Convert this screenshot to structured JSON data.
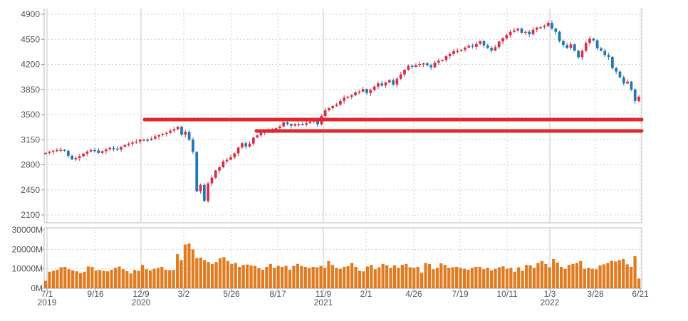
{
  "chart_data": [
    {
      "type": "candlestick",
      "y_ticks": [
        "4900",
        "4550",
        "4200",
        "3850",
        "3500",
        "3150",
        "2800",
        "2450",
        "2100"
      ],
      "ylim": [
        2000,
        4920
      ],
      "x_ticks": [
        {
          "label": "7/1",
          "year": "2019"
        },
        {
          "label": "9/16",
          "year": ""
        },
        {
          "label": "12/9",
          "year": "2020"
        },
        {
          "label": "3/2",
          "year": ""
        },
        {
          "label": "5/26",
          "year": ""
        },
        {
          "label": "8/17",
          "year": ""
        },
        {
          "label": "11/9",
          "year": "2021"
        },
        {
          "label": "2/1",
          "year": ""
        },
        {
          "label": "4/26",
          "year": ""
        },
        {
          "label": "7/19",
          "year": ""
        },
        {
          "label": "10/11",
          "year": ""
        },
        {
          "label": "1/3",
          "year": "2022"
        },
        {
          "label": "3/28",
          "year": ""
        },
        {
          "label": "6/21",
          "year": ""
        }
      ],
      "grid": true,
      "colors": {
        "up": "#d8304a",
        "down": "#1f77b4",
        "volume": "#e07b20",
        "lines": "#e0282e"
      },
      "closes": [
        2965,
        2980,
        2995,
        3005,
        3010,
        2995,
        2925,
        2875,
        2895,
        2920,
        2955,
        2985,
        3005,
        3000,
        2965,
        2990,
        3015,
        3035,
        3025,
        3010,
        3050,
        3075,
        3095,
        3110,
        3125,
        3150,
        3150,
        3145,
        3165,
        3195,
        3215,
        3230,
        3245,
        3275,
        3295,
        3330,
        3220,
        3260,
        3150,
        2980,
        2430,
        2520,
        2295,
        2540,
        2620,
        2720,
        2765,
        2850,
        2870,
        2905,
        2960,
        3040,
        3100,
        3055,
        3095,
        3180,
        3210,
        3250,
        3260,
        3275,
        3300,
        3310,
        3335,
        3390,
        3370,
        3345,
        3365,
        3370,
        3360,
        3380,
        3400,
        3430,
        3365,
        3480,
        3560,
        3590,
        3620,
        3640,
        3690,
        3735,
        3750,
        3770,
        3810,
        3820,
        3855,
        3800,
        3845,
        3890,
        3935,
        3905,
        3950,
        3980,
        3920,
        4000,
        4060,
        4125,
        4180,
        4165,
        4190,
        4205,
        4215,
        4190,
        4160,
        4225,
        4250,
        4260,
        4315,
        4345,
        4385,
        4390,
        4405,
        4435,
        4460,
        4445,
        4485,
        4525,
        4465,
        4430,
        4395,
        4440,
        4520,
        4565,
        4610,
        4655,
        4675,
        4700,
        4640,
        4655,
        4620,
        4685,
        4715,
        4720,
        4735,
        4780,
        4700,
        4655,
        4525,
        4470,
        4430,
        4480,
        4390,
        4300,
        4390,
        4500,
        4560,
        4535,
        4425,
        4390,
        4330,
        4305,
        4150,
        4100,
        4020,
        3935,
        3960,
        3850,
        3690,
        3750
      ],
      "volume_ticks": [
        "30000M",
        "20000M",
        "10000M",
        "0M"
      ],
      "volume_max": 30000,
      "volumes": [
        3800,
        8500,
        9000,
        9500,
        10800,
        11000,
        9800,
        9200,
        8700,
        7800,
        8500,
        11200,
        11000,
        9200,
        9400,
        9000,
        8700,
        9500,
        10500,
        11200,
        9800,
        8800,
        7600,
        9400,
        9000,
        12000,
        9800,
        9200,
        10000,
        10500,
        11000,
        9500,
        9300,
        9400,
        17500,
        14500,
        22500,
        23000,
        20000,
        15500,
        15800,
        14500,
        13500,
        12500,
        13500,
        15500,
        16000,
        14000,
        12500,
        13000,
        11000,
        12000,
        12200,
        11800,
        11500,
        10500,
        9500,
        11000,
        12500,
        10500,
        11500,
        11000,
        11500,
        9500,
        11500,
        12500,
        11500,
        11000,
        10500,
        11000,
        10800,
        11500,
        10500,
        14000,
        12000,
        10500,
        10000,
        11000,
        11300,
        13000,
        11000,
        9000,
        8700,
        11200,
        12000,
        9800,
        10800,
        12500,
        11800,
        10500,
        11800,
        10500,
        12000,
        12500,
        10800,
        10500,
        11000,
        8000,
        13000,
        12500,
        9800,
        10500,
        12800,
        12000,
        10500,
        10800,
        11000,
        10500,
        10000,
        9500,
        10500,
        11000,
        11000,
        9800,
        10500,
        9200,
        10000,
        10800,
        11300,
        10000,
        10500,
        8500,
        10800,
        9000,
        12000,
        11800,
        10500,
        13000,
        14000,
        12500,
        10800,
        15000,
        13200,
        11000,
        10000,
        12000,
        12500,
        13000,
        14000,
        10000,
        10500,
        10000,
        9800,
        11800,
        12300,
        13000,
        14200,
        13800,
        14500,
        15000,
        12300,
        11000,
        16500,
        5000
      ],
      "hlines": [
        {
          "start": "12/9",
          "end": "6/21",
          "value": 3430
        },
        {
          "start": "7/13",
          "end": "6/21",
          "value": 3272
        }
      ]
    }
  ]
}
